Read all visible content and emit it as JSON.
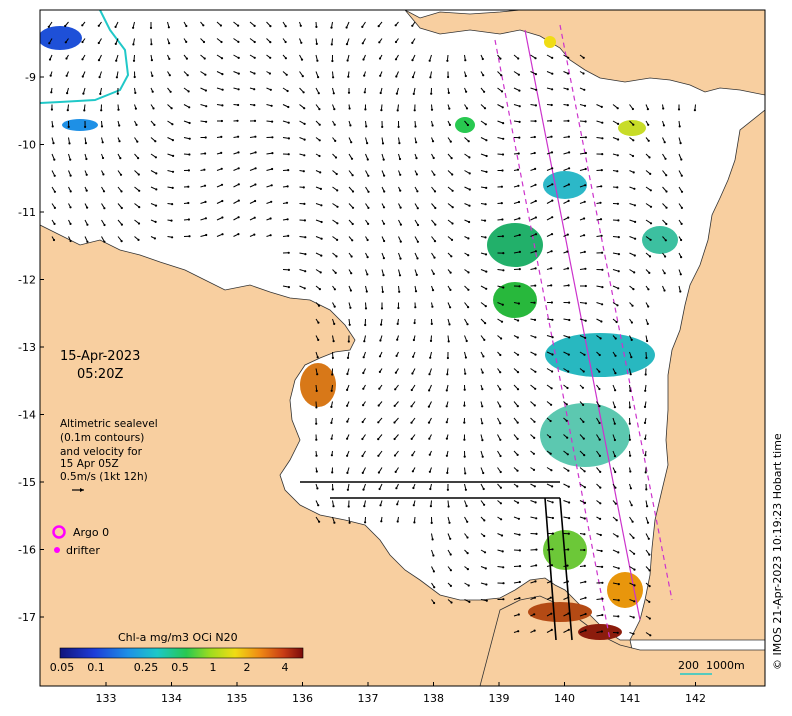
{
  "map": {
    "date_line": "15-Apr-2023",
    "time_line": "05:20Z",
    "info_lines": [
      "Altimetric sealevel",
      "(0.1m contours)",
      "and velocity for",
      "15 Apr 05Z",
      "0.5m/s (1kt 12h)"
    ],
    "legend_argo": "Argo 0",
    "legend_drifter": "drifter",
    "colorbar_title": "Chl-a mg/m3 OCi N20",
    "colorbar_ticks": [
      "0.05",
      "0.1",
      "0.25",
      "0.5",
      "1",
      "2",
      "4"
    ],
    "scale_label_left": "200",
    "scale_label_right": "1000m",
    "credit": "© IMOS 21-Apr-2023 10:19:23 Hobart time",
    "lon_ticks": [
      "133",
      "134",
      "135",
      "136",
      "137",
      "138",
      "139",
      "140",
      "141",
      "142"
    ],
    "lat_ticks": [
      "-9",
      "-10",
      "-11",
      "-12",
      "-13",
      "-14",
      "-15",
      "-16",
      "-17"
    ],
    "colors": {
      "land": "#F8CFA0",
      "arrow": "#000000",
      "track": "#CC33CC",
      "contour_200m": "#20C8C8",
      "argo_marker": "#FF00FF"
    }
  }
}
